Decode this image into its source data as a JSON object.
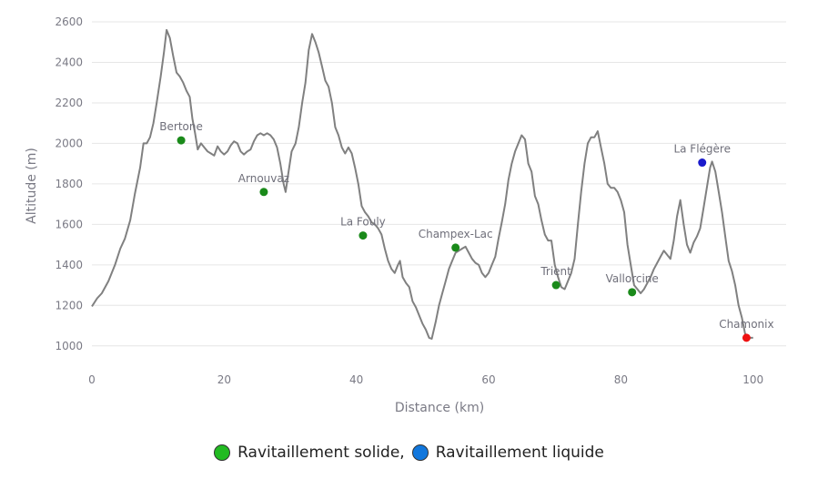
{
  "chart_data": {
    "type": "line",
    "xlabel": "Distance (km)",
    "ylabel": "Altitude (m)",
    "xlim": [
      0,
      105
    ],
    "ylim": [
      900,
      2600
    ],
    "xticks": [
      0,
      20,
      40,
      60,
      80,
      100
    ],
    "yticks": [
      1000,
      1200,
      1400,
      1600,
      1800,
      2000,
      2200,
      2400,
      2600
    ],
    "grid": "horizontal",
    "line_color": "#808080",
    "profile": [
      [
        0,
        1195
      ],
      [
        0.8,
        1235
      ],
      [
        1.5,
        1260
      ],
      [
        2.5,
        1320
      ],
      [
        3.5,
        1400
      ],
      [
        4.3,
        1480
      ],
      [
        5,
        1530
      ],
      [
        5.8,
        1620
      ],
      [
        6.5,
        1750
      ],
      [
        7.3,
        1880
      ],
      [
        7.8,
        2000
      ],
      [
        8.3,
        2000
      ],
      [
        8.8,
        2030
      ],
      [
        9.3,
        2100
      ],
      [
        9.8,
        2200
      ],
      [
        10.4,
        2330
      ],
      [
        10.9,
        2450
      ],
      [
        11.3,
        2560
      ],
      [
        11.8,
        2520
      ],
      [
        12.3,
        2430
      ],
      [
        12.8,
        2350
      ],
      [
        13.3,
        2330
      ],
      [
        13.8,
        2300
      ],
      [
        14.3,
        2260
      ],
      [
        14.8,
        2230
      ],
      [
        15.2,
        2120
      ],
      [
        15.6,
        2050
      ],
      [
        16,
        1970
      ],
      [
        16.5,
        2000
      ],
      [
        17,
        1980
      ],
      [
        17.5,
        1960
      ],
      [
        18,
        1950
      ],
      [
        18.5,
        1940
      ],
      [
        19,
        1985
      ],
      [
        19.5,
        1960
      ],
      [
        20,
        1945
      ],
      [
        20.5,
        1960
      ],
      [
        21,
        1990
      ],
      [
        21.5,
        2010
      ],
      [
        22,
        2000
      ],
      [
        22.5,
        1960
      ],
      [
        23,
        1945
      ],
      [
        23.5,
        1960
      ],
      [
        24,
        1970
      ],
      [
        24.5,
        2010
      ],
      [
        25,
        2040
      ],
      [
        25.5,
        2050
      ],
      [
        26,
        2040
      ],
      [
        26.5,
        2050
      ],
      [
        27,
        2040
      ],
      [
        27.5,
        2020
      ],
      [
        28,
        1980
      ],
      [
        28.5,
        1900
      ],
      [
        29,
        1800
      ],
      [
        29.3,
        1760
      ],
      [
        29.7,
        1850
      ],
      [
        30.2,
        1960
      ],
      [
        30.8,
        2000
      ],
      [
        31.3,
        2080
      ],
      [
        31.8,
        2200
      ],
      [
        32.3,
        2300
      ],
      [
        32.8,
        2460
      ],
      [
        33.3,
        2540
      ],
      [
        33.8,
        2500
      ],
      [
        34.3,
        2450
      ],
      [
        34.8,
        2380
      ],
      [
        35.3,
        2310
      ],
      [
        35.8,
        2280
      ],
      [
        36.3,
        2200
      ],
      [
        36.8,
        2080
      ],
      [
        37.3,
        2040
      ],
      [
        37.8,
        1980
      ],
      [
        38.3,
        1950
      ],
      [
        38.8,
        1980
      ],
      [
        39.3,
        1950
      ],
      [
        39.8,
        1880
      ],
      [
        40.3,
        1800
      ],
      [
        40.8,
        1690
      ],
      [
        41.3,
        1660
      ],
      [
        41.8,
        1640
      ],
      [
        42.3,
        1610
      ],
      [
        42.8,
        1600
      ],
      [
        43.3,
        1580
      ],
      [
        43.8,
        1550
      ],
      [
        44.3,
        1480
      ],
      [
        44.8,
        1420
      ],
      [
        45.3,
        1380
      ],
      [
        45.8,
        1360
      ],
      [
        46.3,
        1400
      ],
      [
        46.6,
        1420
      ],
      [
        47,
        1340
      ],
      [
        47.5,
        1310
      ],
      [
        48,
        1290
      ],
      [
        48.5,
        1220
      ],
      [
        49,
        1190
      ],
      [
        49.5,
        1150
      ],
      [
        50,
        1110
      ],
      [
        50.5,
        1080
      ],
      [
        51,
        1040
      ],
      [
        51.4,
        1035
      ],
      [
        52,
        1120
      ],
      [
        52.5,
        1200
      ],
      [
        53,
        1260
      ],
      [
        53.5,
        1320
      ],
      [
        54,
        1380
      ],
      [
        54.5,
        1420
      ],
      [
        55,
        1460
      ],
      [
        55.5,
        1470
      ],
      [
        56,
        1480
      ],
      [
        56.5,
        1490
      ],
      [
        57,
        1460
      ],
      [
        57.5,
        1430
      ],
      [
        58,
        1410
      ],
      [
        58.5,
        1400
      ],
      [
        59,
        1360
      ],
      [
        59.5,
        1340
      ],
      [
        60,
        1360
      ],
      [
        60.5,
        1400
      ],
      [
        61,
        1440
      ],
      [
        61.5,
        1530
      ],
      [
        62,
        1610
      ],
      [
        62.5,
        1700
      ],
      [
        63,
        1820
      ],
      [
        63.5,
        1900
      ],
      [
        64,
        1960
      ],
      [
        64.5,
        2000
      ],
      [
        65,
        2040
      ],
      [
        65.5,
        2020
      ],
      [
        66,
        1900
      ],
      [
        66.5,
        1860
      ],
      [
        67,
        1740
      ],
      [
        67.5,
        1700
      ],
      [
        68,
        1620
      ],
      [
        68.5,
        1550
      ],
      [
        69,
        1520
      ],
      [
        69.5,
        1520
      ],
      [
        70,
        1400
      ],
      [
        70.5,
        1340
      ],
      [
        71,
        1290
      ],
      [
        71.5,
        1280
      ],
      [
        72,
        1320
      ],
      [
        72.5,
        1360
      ],
      [
        73,
        1430
      ],
      [
        73.5,
        1600
      ],
      [
        74,
        1760
      ],
      [
        74.5,
        1900
      ],
      [
        75,
        2000
      ],
      [
        75.5,
        2030
      ],
      [
        76,
        2030
      ],
      [
        76.5,
        2060
      ],
      [
        77,
        1980
      ],
      [
        77.5,
        1900
      ],
      [
        78,
        1800
      ],
      [
        78.5,
        1780
      ],
      [
        79,
        1780
      ],
      [
        79.5,
        1760
      ],
      [
        80,
        1720
      ],
      [
        80.5,
        1660
      ],
      [
        81,
        1500
      ],
      [
        81.5,
        1400
      ],
      [
        82,
        1300
      ],
      [
        82.5,
        1280
      ],
      [
        83,
        1260
      ],
      [
        83.5,
        1280
      ],
      [
        84,
        1310
      ],
      [
        84.5,
        1340
      ],
      [
        85,
        1380
      ],
      [
        85.5,
        1410
      ],
      [
        86,
        1440
      ],
      [
        86.5,
        1470
      ],
      [
        87,
        1450
      ],
      [
        87.5,
        1430
      ],
      [
        88,
        1520
      ],
      [
        88.5,
        1640
      ],
      [
        89,
        1720
      ],
      [
        89.5,
        1600
      ],
      [
        90,
        1500
      ],
      [
        90.5,
        1460
      ],
      [
        91,
        1510
      ],
      [
        91.5,
        1540
      ],
      [
        92,
        1580
      ],
      [
        92.5,
        1680
      ],
      [
        93,
        1780
      ],
      [
        93.5,
        1880
      ],
      [
        93.8,
        1910
      ],
      [
        94.3,
        1860
      ],
      [
        94.8,
        1760
      ],
      [
        95.3,
        1660
      ],
      [
        95.8,
        1540
      ],
      [
        96.3,
        1420
      ],
      [
        96.8,
        1370
      ],
      [
        97.3,
        1300
      ],
      [
        97.8,
        1200
      ],
      [
        98.3,
        1140
      ],
      [
        98.8,
        1060
      ],
      [
        99.3,
        1040
      ],
      [
        100,
        1040
      ]
    ],
    "points": [
      {
        "label": "Bertone",
        "x": 13.5,
        "y": 2015,
        "color": "#1a8a1a"
      },
      {
        "label": "Arnouvaz",
        "x": 26,
        "y": 1760,
        "color": "#1a8a1a"
      },
      {
        "label": "La Fouly",
        "x": 41,
        "y": 1545,
        "color": "#1a8a1a"
      },
      {
        "label": "Champex-Lac",
        "x": 55,
        "y": 1485,
        "color": "#1a8a1a"
      },
      {
        "label": "Trient",
        "x": 70.2,
        "y": 1300,
        "color": "#1a8a1a"
      },
      {
        "label": "Vallorcine",
        "x": 81.7,
        "y": 1265,
        "color": "#1a8a1a"
      },
      {
        "label": "La Flégère",
        "x": 92.3,
        "y": 1905,
        "color": "#1a1acc"
      },
      {
        "label": "Chamonix",
        "x": 99,
        "y": 1040,
        "color": "#ee1111"
      }
    ],
    "legend": {
      "placement": "bottom",
      "items": [
        {
          "label": "Ravitaillement solide,",
          "color": "#22bb22"
        },
        {
          "label": "Ravitaillement liquide",
          "color": "#1177dd"
        }
      ]
    }
  }
}
